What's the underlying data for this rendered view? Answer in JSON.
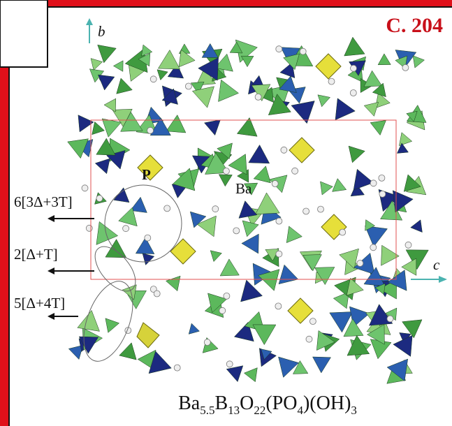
{
  "header": {
    "plate": "C. 204"
  },
  "axes": {
    "b": "b",
    "c": "c"
  },
  "labels": {
    "p": "P",
    "ba": "Ba"
  },
  "annotations": [
    "6[3Δ+3T]",
    "2[Δ+T]",
    "5[Δ+4T]"
  ],
  "formula": [
    "Ba",
    "5.5",
    "B",
    "13",
    "O",
    "22",
    "(PO",
    "4",
    ")(OH)",
    "3"
  ]
}
